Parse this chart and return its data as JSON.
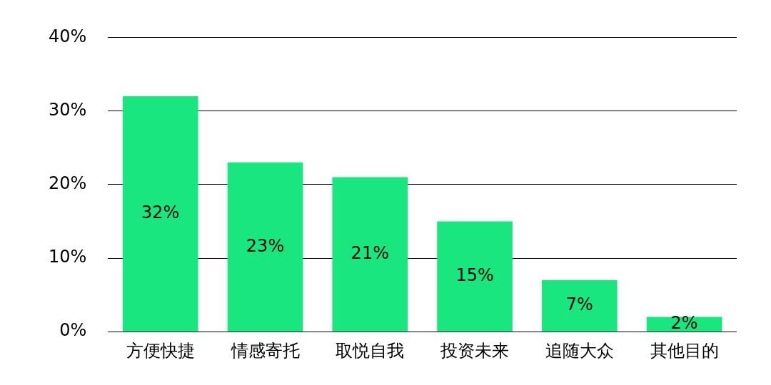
{
  "chart_data": {
    "type": "bar",
    "categories": [
      "方便快捷",
      "情感寄托",
      "取悦自我",
      "投资未来",
      "追随大众",
      "其他目的"
    ],
    "values": [
      32,
      23,
      21,
      15,
      7,
      2
    ],
    "color": "#19e67f",
    "value_labels": [
      "32%",
      "23%",
      "21%",
      "15%",
      "7%",
      "2%"
    ],
    "ylim": [
      0,
      40
    ],
    "yticks": [
      {
        "value": 0,
        "label": "0%"
      },
      {
        "value": 10,
        "label": "10%"
      },
      {
        "value": 20,
        "label": "20%"
      },
      {
        "value": 30,
        "label": "30%"
      },
      {
        "value": 40,
        "label": "40%"
      }
    ],
    "grid": "y",
    "legend": false
  }
}
